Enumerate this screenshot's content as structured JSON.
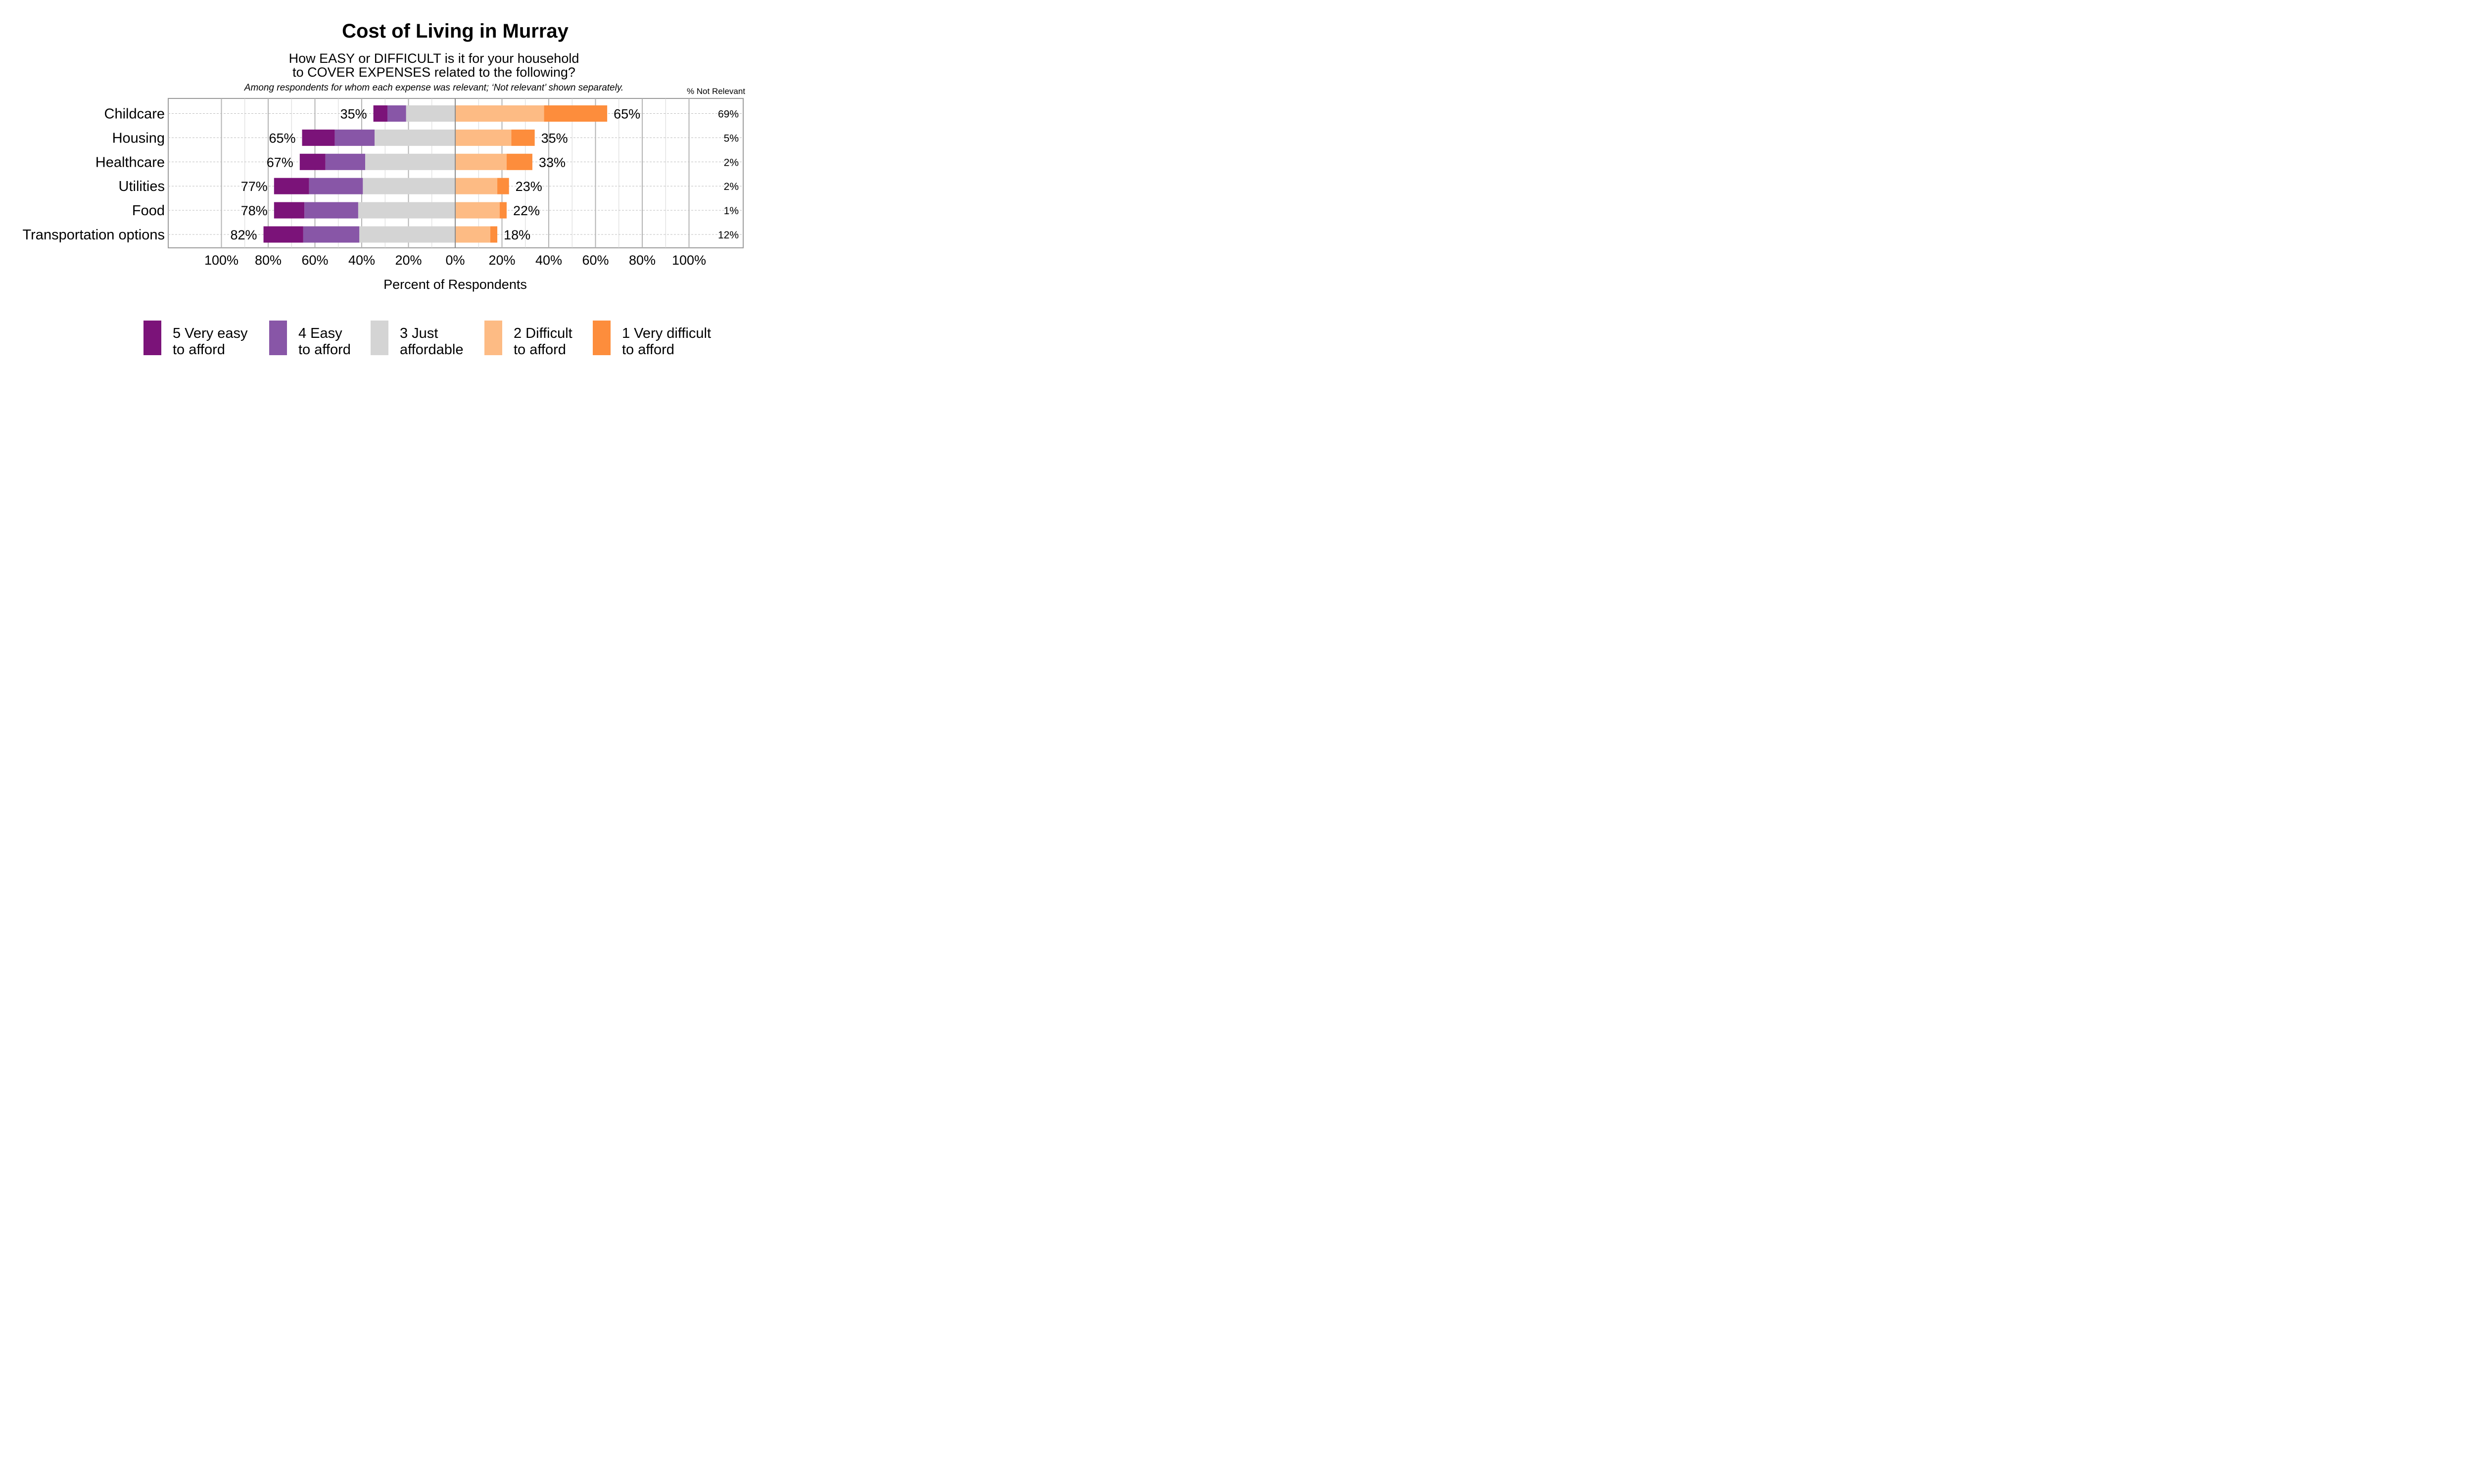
{
  "chart_data": {
    "type": "bar",
    "orientation": "horizontal-diverging",
    "title": "Cost of Living in Murray",
    "subtitle_line1": "How EASY or DIFFICULT is it for your household",
    "subtitle_line2": "to COVER EXPENSES related to the following?",
    "note": "Among respondents for whom each expense was relevant; ‘Not relevant’ shown separately.",
    "not_relevant_header": "% Not Relevant",
    "xlabel": "Percent of Respondents",
    "xlim": [
      -100,
      100
    ],
    "x_ticks": [
      -100,
      -80,
      -60,
      -40,
      -20,
      0,
      20,
      40,
      60,
      80,
      100
    ],
    "x_tick_labels": [
      "100%",
      "80%",
      "60%",
      "40%",
      "20%",
      "0%",
      "20%",
      "40%",
      "60%",
      "80%",
      "100%"
    ],
    "categories": [
      "Childcare",
      "Housing",
      "Healthcare",
      "Utilities",
      "Food",
      "Transportation options"
    ],
    "series": [
      {
        "key": "very_easy",
        "label_line1": "5 Very easy",
        "label_line2": "to afford",
        "color": "#7B1379",
        "values": [
          6,
          14,
          11,
          15,
          13,
          17
        ]
      },
      {
        "key": "easy",
        "label_line1": "4 Easy",
        "label_line2": "to afford",
        "color": "#8856A7",
        "values": [
          8,
          17,
          17,
          23,
          23,
          24
        ]
      },
      {
        "key": "just",
        "label_line1": "3 Just",
        "label_line2": "affordable",
        "color": "#D4D4D4",
        "values": [
          42,
          69,
          77,
          79,
          83,
          82
        ]
      },
      {
        "key": "difficult",
        "label_line1": "2 Difficult",
        "label_line2": "to afford",
        "color": "#FDBB84",
        "values": [
          38,
          24,
          22,
          18,
          19,
          15
        ]
      },
      {
        "key": "very_difficult",
        "label_line1": "1 Very difficult",
        "label_line2": "to afford",
        "color": "#FD8D3C",
        "values": [
          27,
          10,
          11,
          5,
          3,
          3
        ]
      }
    ],
    "left_totals": [
      "35%",
      "65%",
      "67%",
      "77%",
      "78%",
      "82%"
    ],
    "right_totals": [
      "65%",
      "35%",
      "33%",
      "23%",
      "22%",
      "18%"
    ],
    "not_relevant": [
      "69%",
      "5%",
      "2%",
      "2%",
      "1%",
      "12%"
    ],
    "legend_position": "bottom",
    "grid": true
  }
}
